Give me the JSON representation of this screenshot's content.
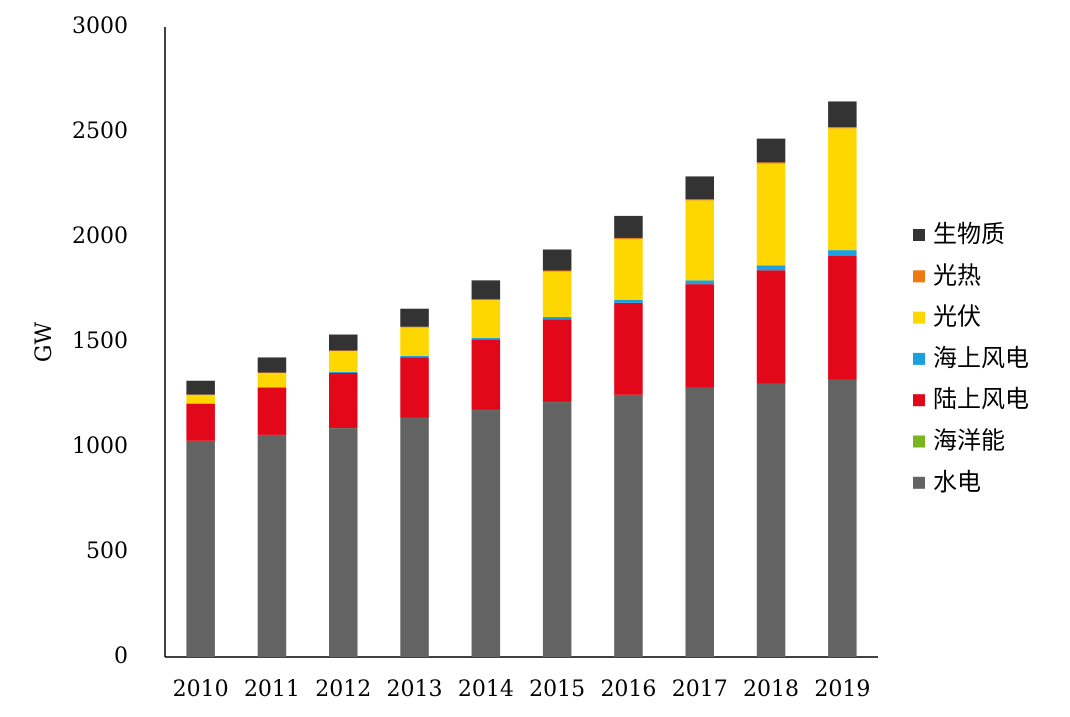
{
  "chart_data": {
    "type": "stacked_bar",
    "y_label": "GW",
    "categories": [
      "2010",
      "2011",
      "2012",
      "2013",
      "2014",
      "2015",
      "2016",
      "2017",
      "2018",
      "2019"
    ],
    "series": [
      {
        "name": "水电",
        "color": "#636363",
        "values": [
          1029,
          1057,
          1090,
          1138,
          1176,
          1214,
          1248,
          1281,
          1300,
          1319
        ]
      },
      {
        "name": "海洋能",
        "color": "#7ab51d",
        "values": [
          0.5,
          0.5,
          0.5,
          0.5,
          0.5,
          0.5,
          0.5,
          0.5,
          0.5,
          0.5
        ]
      },
      {
        "name": "陆上风电",
        "color": "#e3071a",
        "values": [
          176,
          224,
          262,
          288,
          335,
          393,
          438,
          494,
          541,
          590
        ]
      },
      {
        "name": "海上风电",
        "color": "#1ea0e0",
        "values": [
          3,
          4,
          5,
          7,
          8,
          12,
          14,
          18,
          23,
          28
        ]
      },
      {
        "name": "光伏",
        "color": "#ffd700",
        "values": [
          40,
          67,
          100,
          136,
          180,
          216,
          290,
          381,
          485,
          580
        ]
      },
      {
        "name": "光热",
        "color": "#f07a10",
        "values": [
          1,
          2,
          2,
          3,
          4,
          5,
          5,
          5,
          6,
          6
        ]
      },
      {
        "name": "生物质",
        "color": "#333333",
        "values": [
          66,
          72,
          76,
          86,
          90,
          100,
          105,
          109,
          113,
          122
        ]
      }
    ],
    "ylim": [
      0,
      3000
    ],
    "yticks": [
      0,
      500,
      1000,
      1500,
      2000,
      2500,
      3000
    ]
  }
}
